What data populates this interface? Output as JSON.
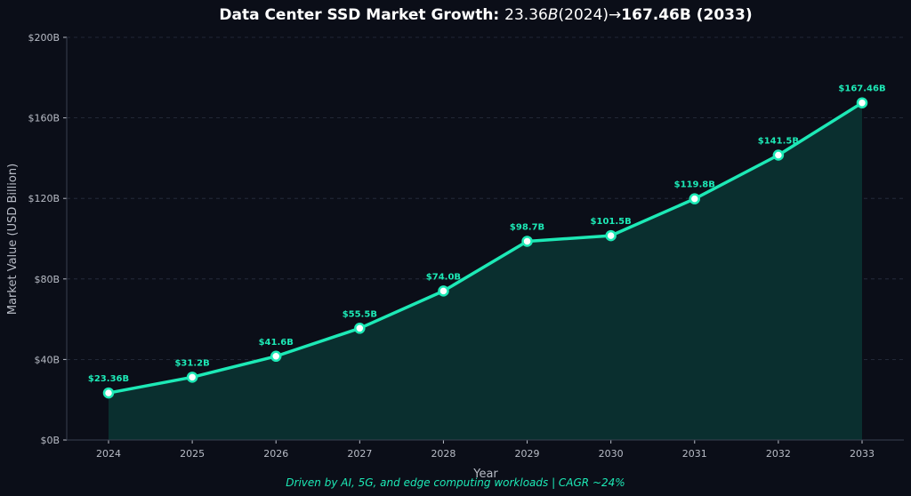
{
  "colors": {
    "background": "#0b0e18",
    "plot_background": "#0b0e18",
    "line": "#1de9b6",
    "area_fill": "#0a2f2f",
    "grid": "#2a3040",
    "axis_text": "#b8bcc6",
    "title_text": "#ffffff",
    "caption": "#1de9b6",
    "marker_center": "#ffffff"
  },
  "chart_data": {
    "type": "area",
    "title_parts": [
      {
        "text": "Data Center SSD Market Growth: ",
        "style": "bold"
      },
      {
        "text": "23.36",
        "style": "normal"
      },
      {
        "text": "B",
        "style": "italic"
      },
      {
        "text": "(2024)→",
        "style": "normal"
      },
      {
        "text": "167.46B (2033)",
        "style": "bold"
      }
    ],
    "xlabel": "Year",
    "ylabel": "Market Value (USD Billion)",
    "x": [
      "2024",
      "2025",
      "2026",
      "2027",
      "2028",
      "2029",
      "2030",
      "2031",
      "2032",
      "2033"
    ],
    "series": [
      {
        "values": [
          23.36,
          31.2,
          41.6,
          55.5,
          74.0,
          98.7,
          101.5,
          119.8,
          141.5,
          167.46
        ]
      }
    ],
    "data_labels": [
      "$23.36B",
      "$31.2B",
      "$41.6B",
      "$55.5B",
      "$74.0B",
      "$98.7B",
      "$101.5B",
      "$119.8B",
      "$141.5B",
      "$167.46B"
    ],
    "ylim": [
      0,
      200
    ],
    "yticks": [
      0,
      40,
      80,
      120,
      160,
      200
    ],
    "ytick_labels": [
      "$0B",
      "$40B",
      "$80B",
      "$120B",
      "$160B",
      "$200B"
    ],
    "grid": true,
    "caption": "Driven by AI, 5G, and edge computing workloads | CAGR ~24%"
  }
}
